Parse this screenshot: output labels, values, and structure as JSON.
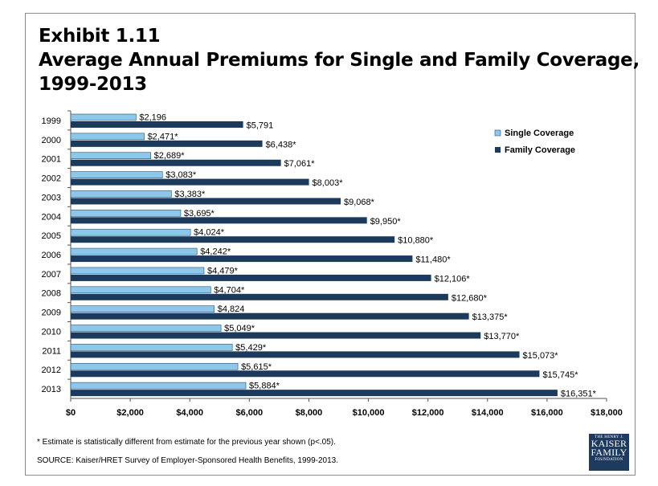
{
  "title_lines": [
    "Exhibit 1.11",
    "Average Annual Premiums for Single and Family Coverage,",
    "1999-2013"
  ],
  "footnote": "* Estimate is statistically different from estimate for the previous year shown (p<.05).",
  "source": "SOURCE:  Kaiser/HRET Survey of Employer-Sponsored Health Benefits, 1999-2013.",
  "logo": {
    "line1": "THE HENRY J.",
    "line2": "KAISER",
    "line3": "FAMILY",
    "line4": "FOUNDATION"
  },
  "colors": {
    "single": "#8dc8ea",
    "family": "#1b3a5c",
    "single_stroke": "#2a4f70",
    "axis": "#555555"
  },
  "chart_data": {
    "type": "bar",
    "orientation": "horizontal",
    "title": "Average Annual Premiums for Single and Family Coverage, 1999-2013",
    "categories": [
      "1999",
      "2000",
      "2001",
      "2002",
      "2003",
      "2004",
      "2005",
      "2006",
      "2007",
      "2008",
      "2009",
      "2010",
      "2011",
      "2012",
      "2013"
    ],
    "series": [
      {
        "name": "Single Coverage",
        "values": [
          2196,
          2471,
          2689,
          3083,
          3383,
          3695,
          4024,
          4242,
          4479,
          4704,
          4824,
          5049,
          5429,
          5615,
          5884
        ],
        "labels": [
          "$2,196",
          "$2,471*",
          "$2,689*",
          "$3,083*",
          "$3,383*",
          "$3,695*",
          "$4,024*",
          "$4,242*",
          "$4,479*",
          "$4,704*",
          "$4,824",
          "$5,049*",
          "$5,429*",
          "$5,615*",
          "$5,884*"
        ]
      },
      {
        "name": "Family Coverage",
        "values": [
          5791,
          6438,
          7061,
          8003,
          9068,
          9950,
          10880,
          11480,
          12106,
          12680,
          13375,
          13770,
          15073,
          15745,
          16351
        ],
        "labels": [
          "$5,791",
          "$6,438*",
          "$7,061*",
          "$8,003*",
          "$9,068*",
          "$9,950*",
          "$10,880*",
          "$11,480*",
          "$12,106*",
          "$12,680*",
          "$13,375*",
          "$13,770*",
          "$15,073*",
          "$15,745*",
          "$16,351*"
        ]
      }
    ],
    "xlim": [
      0,
      18000
    ],
    "xticks": [
      0,
      2000,
      4000,
      6000,
      8000,
      10000,
      12000,
      14000,
      16000,
      18000
    ],
    "xtick_labels": [
      "$0",
      "$2,000",
      "$4,000",
      "$6,000",
      "$8,000",
      "$10,000",
      "$12,000",
      "$14,000",
      "$16,000",
      "$18,000"
    ],
    "grid": false,
    "legend": "top-right"
  }
}
